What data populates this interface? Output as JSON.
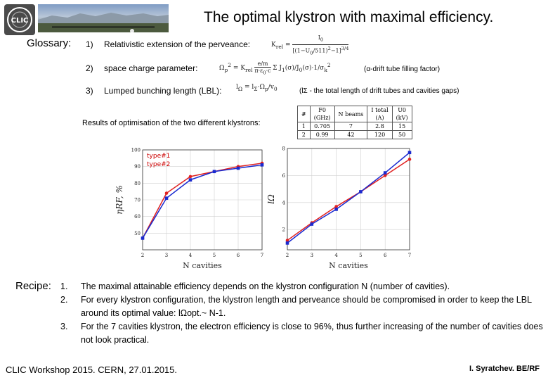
{
  "header": {
    "title": "The optimal klystron with maximal efficiency.",
    "logo_text": "CLIC"
  },
  "glossary": {
    "label": "Glossary:",
    "items": [
      {
        "num": "1)",
        "text": "Relativistic extension of the perveance:",
        "note": ""
      },
      {
        "num": "2)",
        "text": "space charge parameter:",
        "note": "(α-drift tube filling factor)"
      },
      {
        "num": "3)",
        "text": "Lumped bunching length (LBL):",
        "note": "(lΣ - the total length of drift tubes and cavities gaps)"
      }
    ]
  },
  "results": {
    "label": "Results of optimisation of the two different klystrons:",
    "table": {
      "headers": [
        "#",
        "F0",
        "(GHz)",
        "N beams",
        "I total",
        "(A)",
        "U0",
        "(kV)"
      ],
      "rows": [
        [
          "1",
          "0.705",
          "7",
          "2.8",
          "15"
        ],
        [
          "2",
          "0.99",
          "42",
          "120",
          "50"
        ]
      ]
    }
  },
  "recipe": {
    "label": "Recipe:",
    "items": [
      {
        "num": "1.",
        "text": "The maximal attainable efficiency depends on the klystron configuration N (number of cavities)."
      },
      {
        "num": "2.",
        "text": "For every klystron configuration, the klystron length and perveance should be compromised in order to keep the LBL around its optimal value: lΩopt.~ N-1."
      },
      {
        "num": "3.",
        "text": "For the 7 cavities klystron, the electron efficiency is close to 96%, thus further increasing of the number of cavities does not look practical."
      }
    ]
  },
  "footer": {
    "left": "CLIC Workshop 2015. CERN, 27.01.2015.",
    "right": "I. Syratchev. BE/RF"
  },
  "colors": {
    "type1": "#e02020",
    "type2": "#1a2ad0"
  },
  "chart_data": [
    {
      "type": "line",
      "xlabel": "N cavities",
      "ylabel": "ηRF, %",
      "xlim": [
        2,
        7
      ],
      "ylim": [
        40,
        100
      ],
      "xticks": [
        2,
        3,
        4,
        5,
        6,
        7
      ],
      "yticks": [
        50,
        60,
        70,
        80,
        90,
        100
      ],
      "legend": [
        "type#1",
        "type#2"
      ],
      "x": [
        2,
        3,
        4,
        5,
        6,
        7
      ],
      "series": [
        {
          "name": "type#1",
          "values": [
            47,
            74,
            84,
            87,
            90,
            92
          ]
        },
        {
          "name": "type#2",
          "values": [
            47,
            71,
            82,
            87,
            89,
            91
          ]
        }
      ]
    },
    {
      "type": "line",
      "xlabel": "N cavities",
      "ylabel": "lΩ",
      "xlim": [
        2,
        7
      ],
      "ylim": [
        0.5,
        8
      ],
      "xticks": [
        2,
        3,
        4,
        5,
        6,
        7
      ],
      "yticks": [
        2,
        4,
        6,
        8
      ],
      "x": [
        2,
        3,
        4,
        5,
        6,
        7
      ],
      "series": [
        {
          "name": "type#1",
          "values": [
            1.2,
            2.5,
            3.7,
            4.8,
            6.0,
            7.2
          ]
        },
        {
          "name": "type#2",
          "values": [
            1.0,
            2.4,
            3.5,
            4.8,
            6.2,
            7.7
          ]
        }
      ]
    }
  ]
}
